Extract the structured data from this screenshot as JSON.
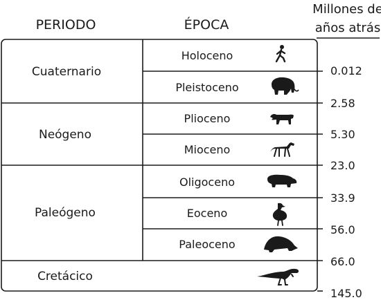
{
  "headers": {
    "period": "PERIODO",
    "epoch": "ÉPOCA",
    "ages_line1": "Millones de",
    "ages_line2": "años atrás"
  },
  "periods": [
    "Cuaternario",
    "Neógeno",
    "Paleógeno",
    "Cretácico"
  ],
  "epochs": [
    "Holoceno",
    "Pleistoceno",
    "Plioceno",
    "Mioceno",
    "Oligoceno",
    "Eoceno",
    "Paleoceno"
  ],
  "ages": [
    "0.012",
    "2.58",
    "5.30",
    "23.0",
    "33.9",
    "56.0",
    "66.0",
    "145.0"
  ],
  "icons": [
    "walking-human-icon",
    "mammoth-icon",
    "sabertooth-cat-icon",
    "early-horse-icon",
    "hippo-like-mammal-icon",
    "terror-bird-icon",
    "armadillo-like-mammal-icon",
    "theropod-dinosaur-icon"
  ]
}
